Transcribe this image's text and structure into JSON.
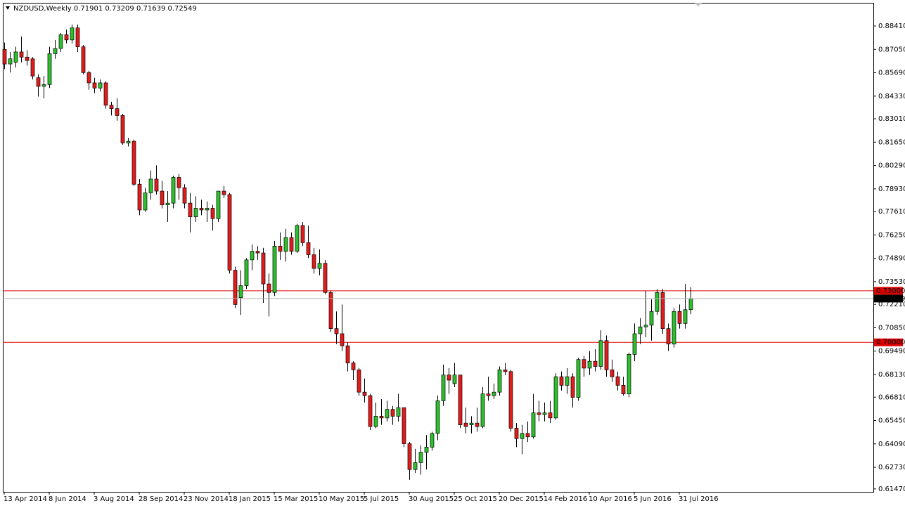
{
  "chart_data": {
    "type": "candlestick",
    "title": "NZDUSD,Weekly",
    "categories": [
      "13 Apr 2014",
      null,
      null,
      null,
      null,
      null,
      null,
      null,
      "8 Jun 2014",
      null,
      null,
      null,
      null,
      null,
      null,
      null,
      "3 Aug 2014",
      null,
      null,
      null,
      null,
      null,
      null,
      null,
      "28 Sep 2014",
      null,
      null,
      null,
      null,
      null,
      null,
      null,
      "23 Nov 2014",
      null,
      null,
      null,
      null,
      null,
      null,
      null,
      "18 Jan 2015",
      null,
      null,
      null,
      null,
      null,
      null,
      null,
      "15 Mar 2015",
      null,
      null,
      null,
      null,
      null,
      null,
      null,
      "10 May 2015",
      null,
      null,
      null,
      null,
      null,
      null,
      null,
      "5 Jul 2015",
      null,
      null,
      null,
      null,
      null,
      null,
      null,
      "30 Aug 2015",
      null,
      null,
      null,
      null,
      null,
      null,
      null,
      "25 Oct 2015",
      null,
      null,
      null,
      null,
      null,
      null,
      null,
      "20 Dec 2015",
      null,
      null,
      null,
      null,
      null,
      null,
      null,
      "14 Feb 2016",
      null,
      null,
      null,
      null,
      null,
      null,
      null,
      "10 Apr 2016",
      null,
      null,
      null,
      null,
      null,
      null,
      null,
      "5 Jun 2016",
      null,
      null,
      null,
      null,
      null,
      null,
      null,
      "31 Jul 2016",
      null,
      null
    ],
    "open": [
      0.8705,
      0.862,
      0.863,
      0.869,
      0.866,
      0.865,
      0.854,
      0.849,
      0.85,
      0.868,
      0.871,
      0.879,
      0.876,
      0.883,
      0.872,
      0.857,
      0.851,
      0.848,
      0.851,
      0.838,
      0.836,
      0.832,
      0.816,
      0.817,
      0.792,
      0.777,
      0.787,
      0.795,
      0.788,
      0.78,
      0.781,
      0.796,
      0.79,
      0.781,
      0.773,
      0.778,
      0.777,
      0.778,
      0.772,
      0.788,
      0.786,
      0.742,
      0.726,
      0.733,
      0.748,
      0.753,
      0.752,
      0.734,
      0.729,
      0.756,
      0.753,
      0.761,
      0.753,
      0.768,
      0.758,
      0.751,
      0.743,
      0.746,
      0.729,
      0.708,
      0.705,
      0.698,
      0.688,
      0.684,
      0.671,
      0.669,
      0.651,
      0.657,
      0.656,
      0.661,
      0.657,
      0.662,
      0.641,
      0.626,
      0.63,
      0.636,
      0.639,
      0.647,
      0.666,
      0.681,
      0.676,
      0.681,
      0.653,
      0.652,
      0.653,
      0.651,
      0.67,
      0.669,
      0.671,
      0.684,
      0.683,
      0.65,
      0.644,
      0.647,
      0.645,
      0.659,
      0.658,
      0.659,
      0.656,
      0.68,
      0.675,
      0.68,
      0.668,
      0.69,
      0.685,
      0.689,
      0.686,
      0.701,
      0.684,
      0.68,
      0.675,
      0.67,
      0.693,
      0.705,
      0.709,
      0.71,
      0.718,
      0.729,
      0.708,
      0.699,
      0.718,
      0.711,
      0.71901
    ],
    "high": [
      0.8745,
      0.869,
      0.872,
      0.878,
      0.87,
      0.866,
      0.856,
      0.855,
      0.872,
      0.876,
      0.88,
      0.882,
      0.885,
      0.885,
      0.873,
      0.858,
      0.854,
      0.853,
      0.852,
      0.84,
      0.842,
      0.833,
      0.819,
      0.818,
      0.795,
      0.79,
      0.8,
      0.803,
      0.794,
      0.788,
      0.797,
      0.798,
      0.792,
      0.787,
      0.785,
      0.783,
      0.782,
      0.78,
      0.788,
      0.791,
      0.787,
      0.744,
      0.742,
      0.749,
      0.757,
      0.756,
      0.755,
      0.74,
      0.759,
      0.764,
      0.766,
      0.764,
      0.769,
      0.77,
      0.768,
      0.755,
      0.754,
      0.748,
      0.73,
      0.718,
      0.722,
      0.7,
      0.689,
      0.685,
      0.679,
      0.67,
      0.665,
      0.667,
      0.666,
      0.663,
      0.67,
      0.662,
      0.642,
      0.638,
      0.64,
      0.646,
      0.648,
      0.669,
      0.687,
      0.685,
      0.688,
      0.681,
      0.662,
      0.657,
      0.662,
      0.674,
      0.68,
      0.676,
      0.686,
      0.688,
      0.684,
      0.653,
      0.652,
      0.654,
      0.67,
      0.666,
      0.665,
      0.666,
      0.682,
      0.683,
      0.685,
      0.682,
      0.691,
      0.692,
      0.695,
      0.696,
      0.707,
      0.704,
      0.69,
      0.683,
      0.68,
      0.694,
      0.711,
      0.714,
      0.73,
      0.725,
      0.731,
      0.731,
      0.711,
      0.72,
      0.722,
      0.734,
      0.73209
    ],
    "low": [
      0.859,
      0.857,
      0.86,
      0.863,
      0.861,
      0.853,
      0.843,
      0.842,
      0.848,
      0.865,
      0.869,
      0.874,
      0.874,
      0.869,
      0.856,
      0.847,
      0.845,
      0.846,
      0.836,
      0.832,
      0.829,
      0.815,
      0.814,
      0.791,
      0.774,
      0.776,
      0.783,
      0.786,
      0.778,
      0.77,
      0.778,
      0.783,
      0.778,
      0.764,
      0.77,
      0.774,
      0.77,
      0.765,
      0.77,
      0.784,
      0.74,
      0.72,
      0.716,
      0.731,
      0.742,
      0.748,
      0.723,
      0.715,
      0.727,
      0.748,
      0.747,
      0.751,
      0.752,
      0.756,
      0.749,
      0.74,
      0.739,
      0.728,
      0.706,
      0.699,
      0.695,
      0.683,
      0.678,
      0.669,
      0.665,
      0.649,
      0.65,
      0.652,
      0.654,
      0.652,
      0.654,
      0.639,
      0.62,
      0.624,
      0.623,
      0.626,
      0.637,
      0.643,
      0.663,
      0.67,
      0.674,
      0.65,
      0.647,
      0.647,
      0.648,
      0.65,
      0.666,
      0.667,
      0.669,
      0.681,
      0.648,
      0.639,
      0.635,
      0.642,
      0.644,
      0.654,
      0.654,
      0.653,
      0.655,
      0.672,
      0.67,
      0.662,
      0.666,
      0.68,
      0.681,
      0.683,
      0.684,
      0.68,
      0.677,
      0.672,
      0.669,
      0.668,
      0.689,
      0.699,
      0.703,
      0.701,
      0.716,
      0.705,
      0.695,
      0.697,
      0.708,
      0.708,
      0.71639
    ],
    "close": [
      0.862,
      0.865,
      0.869,
      0.866,
      0.864,
      0.855,
      0.849,
      0.85,
      0.868,
      0.871,
      0.879,
      0.876,
      0.883,
      0.872,
      0.857,
      0.851,
      0.848,
      0.851,
      0.838,
      0.836,
      0.832,
      0.816,
      0.817,
      0.792,
      0.777,
      0.787,
      0.795,
      0.788,
      0.78,
      0.781,
      0.796,
      0.79,
      0.781,
      0.773,
      0.778,
      0.777,
      0.778,
      0.772,
      0.788,
      0.786,
      0.742,
      0.722,
      0.733,
      0.748,
      0.753,
      0.752,
      0.734,
      0.729,
      0.756,
      0.753,
      0.761,
      0.753,
      0.768,
      0.758,
      0.751,
      0.743,
      0.746,
      0.729,
      0.708,
      0.705,
      0.698,
      0.688,
      0.684,
      0.671,
      0.669,
      0.651,
      0.657,
      0.656,
      0.661,
      0.657,
      0.662,
      0.641,
      0.626,
      0.63,
      0.636,
      0.639,
      0.647,
      0.666,
      0.681,
      0.678,
      0.681,
      0.652,
      0.651,
      0.653,
      0.651,
      0.67,
      0.669,
      0.671,
      0.684,
      0.683,
      0.65,
      0.644,
      0.647,
      0.645,
      0.659,
      0.658,
      0.659,
      0.656,
      0.68,
      0.675,
      0.68,
      0.668,
      0.69,
      0.685,
      0.689,
      0.686,
      0.701,
      0.684,
      0.68,
      0.675,
      0.67,
      0.693,
      0.705,
      0.709,
      0.71,
      0.718,
      0.729,
      0.708,
      0.699,
      0.718,
      0.711,
      0.719,
      0.72549
    ],
    "up_color": "#2cc12c",
    "down_color": "#e41b1b",
    "ylim": [
      0.613,
      0.8976
    ],
    "yticks": [
      {
        "value": 0.8841,
        "label": "0.88410"
      },
      {
        "value": 0.8705,
        "label": "0.87050"
      },
      {
        "value": 0.8569,
        "label": "0.85690"
      },
      {
        "value": 0.8433,
        "label": "0.84330"
      },
      {
        "value": 0.8301,
        "label": "0.83010"
      },
      {
        "value": 0.8165,
        "label": "0.81650"
      },
      {
        "value": 0.8029,
        "label": "0.80290"
      },
      {
        "value": 0.7893,
        "label": "0.78930"
      },
      {
        "value": 0.7761,
        "label": "0.77610"
      },
      {
        "value": 0.7625,
        "label": "0.76250"
      },
      {
        "value": 0.7489,
        "label": "0.74890"
      },
      {
        "value": 0.7353,
        "label": "0.73530"
      },
      {
        "value": 0.7221,
        "label": "0.72210"
      },
      {
        "value": 0.7085,
        "label": "0.70850"
      },
      {
        "value": 0.6949,
        "label": "0.69490"
      },
      {
        "value": 0.6813,
        "label": "0.68130"
      },
      {
        "value": 0.6681,
        "label": "0.66810"
      },
      {
        "value": 0.6545,
        "label": "0.65450"
      },
      {
        "value": 0.6409,
        "label": "0.64090"
      },
      {
        "value": 0.6273,
        "label": "0.62730"
      },
      {
        "value": 0.6147,
        "label": "0.61470"
      }
    ],
    "levels": [
      {
        "value": 0.73,
        "label": "0.73000"
      },
      {
        "value": 0.7,
        "label": "0.70000"
      }
    ],
    "level_color": "#e00000"
  }
}
